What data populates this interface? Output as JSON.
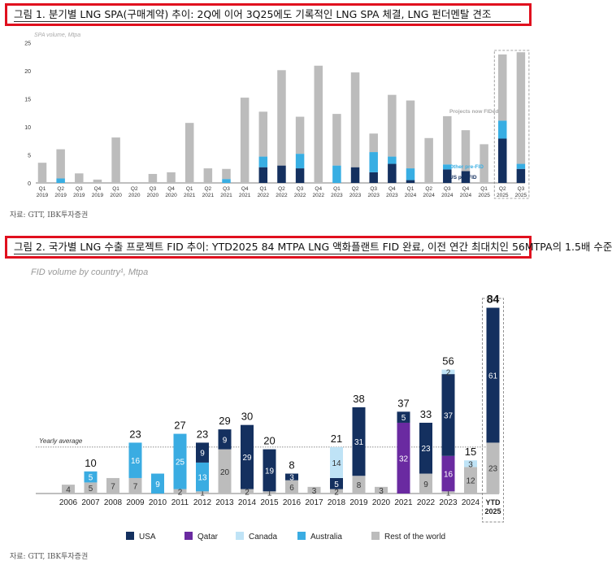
{
  "figure1": {
    "title": "그림 1. 분기별 LNG SPA(구매계약) 추이: 2Q에 이어 3Q25에도 기록적인 LNG SPA 체결, LNG 펀더멘탈 견조",
    "source": "자료: GTT, IBK투자증권"
  },
  "figure2": {
    "title": "그림 2. 국가별 LNG 수출 프로젝트 FID 추이: YTD2025 84 MTPA LNG 액화플랜트 FID 완료, 이전 연간 최대치인 56MTPA의 1.5배 수준",
    "source": "자료: GTT, IBK투자증권"
  },
  "chart_data": [
    {
      "type": "bar",
      "stacked": true,
      "title": "SPA volume, Mtpa",
      "ylim": [
        0,
        25
      ],
      "yticks": [
        "0",
        "5",
        "10",
        "15",
        "20",
        "25"
      ],
      "categories": [
        [
          "Q1",
          "2019"
        ],
        [
          "Q2",
          "2019"
        ],
        [
          "Q3",
          "2019"
        ],
        [
          "Q4",
          "2019"
        ],
        [
          "Q1",
          "2020"
        ],
        [
          "Q2",
          "2020"
        ],
        [
          "Q3",
          "2020"
        ],
        [
          "Q4",
          "2020"
        ],
        [
          "Q1",
          "2021"
        ],
        [
          "Q2",
          "2021"
        ],
        [
          "Q3",
          "2021"
        ],
        [
          "Q4",
          "2021"
        ],
        [
          "Q1",
          "2022"
        ],
        [
          "Q2",
          "2022"
        ],
        [
          "Q3",
          "2022"
        ],
        [
          "Q4",
          "2022"
        ],
        [
          "Q1",
          "2023"
        ],
        [
          "Q2",
          "2023"
        ],
        [
          "Q3",
          "2023"
        ],
        [
          "Q4",
          "2023"
        ],
        [
          "Q1",
          "2024"
        ],
        [
          "Q2",
          "2024"
        ],
        [
          "Q3",
          "2024"
        ],
        [
          "Q4",
          "2024"
        ],
        [
          "Q1",
          "2025"
        ],
        [
          "Q2",
          "2025"
        ],
        [
          "Q3",
          "2025"
        ]
      ],
      "series": [
        {
          "name": "US pre-FID",
          "color": "#14305f",
          "values": [
            0,
            0,
            0,
            0,
            0,
            0,
            0,
            0,
            0,
            0,
            0,
            0,
            2.8,
            3.1,
            2.6,
            0,
            0,
            2.8,
            1.9,
            3.4,
            0.5,
            0,
            2.4,
            2.1,
            0,
            7.9,
            2.5
          ]
        },
        {
          "name": "Other pre-FID",
          "color": "#38aee3",
          "values": [
            0,
            0.8,
            0,
            0,
            0,
            0,
            0,
            0,
            0,
            0,
            0.7,
            0,
            1.9,
            0,
            2.6,
            0,
            3.1,
            0,
            3.6,
            1.3,
            2.1,
            0,
            0.9,
            0,
            0,
            3.2,
            0.9
          ]
        },
        {
          "name": "Projects now FIDed",
          "color": "#bcbcbc",
          "values": [
            3.6,
            5.2,
            1.7,
            0.6,
            8.1,
            0,
            1.6,
            1.9,
            10.7,
            2.6,
            1.8,
            15.2,
            8.0,
            17.0,
            6.6,
            20.9,
            9.2,
            16.9,
            3.3,
            11.0,
            12.1,
            8.0,
            8.6,
            7.3,
            6.9,
            11.8,
            19.9
          ]
        }
      ],
      "legend": [
        "Projects now FIDed",
        "Other pre-FID",
        "US pre-FID"
      ],
      "highlight": "Q2 2025 – Q3 2025 (dashed box)"
    },
    {
      "type": "bar",
      "stacked": true,
      "title": "FID volume by country¹, Mtpa",
      "categories": [
        "2006",
        "2007",
        "2008",
        "2009",
        "2010",
        "2011",
        "2012",
        "2013",
        "2014",
        "2015",
        "2016",
        "2017",
        "2018",
        "2019",
        "2020",
        "2021",
        "2022",
        "2023",
        "2024",
        "YTD 2025"
      ],
      "category_lines": [
        [
          "2006"
        ],
        [
          "2007"
        ],
        [
          "2008"
        ],
        [
          "2009"
        ],
        [
          "2010"
        ],
        [
          "2011"
        ],
        [
          "2012"
        ],
        [
          "2013"
        ],
        [
          "2014"
        ],
        [
          "2015"
        ],
        [
          "2016"
        ],
        [
          "2017"
        ],
        [
          "2018"
        ],
        [
          "2019"
        ],
        [
          "2020"
        ],
        [
          "2021"
        ],
        [
          "2022"
        ],
        [
          "2023"
        ],
        [
          "2024"
        ],
        [
          "YTD",
          "2025"
        ]
      ],
      "totals": [
        "",
        "10",
        "",
        "23",
        "",
        "27",
        "23",
        "29",
        "30",
        "20",
        "8",
        "",
        "21",
        "38",
        "",
        "37",
        "33",
        "56",
        "15",
        "84"
      ],
      "series": [
        {
          "name": "Rest of the world",
          "color": "#bcbcbc",
          "values": [
            4,
            5,
            7,
            7,
            0,
            2,
            1,
            20,
            2,
            1,
            6,
            3,
            2,
            8,
            3,
            0,
            9,
            1,
            12,
            23
          ],
          "labels": [
            "4",
            "5",
            "7",
            "7",
            "",
            "2",
            "1",
            "20",
            "2",
            "1",
            "6",
            "3",
            "2",
            "8",
            "3",
            "",
            "9",
            "1",
            "12",
            "23"
          ]
        },
        {
          "name": "Australia",
          "color": "#3aace2",
          "values": [
            0,
            5,
            0,
            16,
            9,
            25,
            13,
            0,
            0,
            0,
            0,
            0,
            0,
            0,
            0,
            0,
            0,
            0,
            0,
            0
          ],
          "labels": [
            "",
            "5",
            "",
            "16",
            "9",
            "25",
            "13",
            "",
            "",
            "",
            "",
            "",
            "",
            "",
            "",
            "",
            "",
            "",
            "",
            ""
          ]
        },
        {
          "name": "Canada",
          "color": "#bfe3f6",
          "values": [
            0,
            0,
            0,
            0,
            0,
            0,
            0,
            0,
            0,
            0,
            0,
            0,
            14,
            0,
            0,
            0,
            0,
            2,
            3,
            0
          ],
          "labels": [
            "",
            "",
            "",
            "",
            "",
            "",
            "",
            "",
            "",
            "",
            "",
            "",
            "14",
            "",
            "",
            "",
            "",
            "2",
            "3",
            ""
          ]
        },
        {
          "name": "USA",
          "color": "#14305f",
          "values": [
            0,
            0,
            0,
            0,
            0,
            0,
            9,
            9,
            29,
            19,
            3,
            0,
            5,
            31,
            0,
            5,
            23,
            37,
            0,
            61
          ],
          "labels": [
            "",
            "",
            "",
            "",
            "",
            "",
            "9",
            "9",
            "29",
            "19",
            "3",
            "",
            "5",
            "31",
            "",
            "5",
            "23",
            "37",
            "",
            "61"
          ]
        },
        {
          "name": "Qatar",
          "color": "#6a2aa1",
          "values": [
            0,
            0,
            0,
            0,
            0,
            0,
            0,
            0,
            0,
            0,
            0,
            0,
            0,
            0,
            0,
            32,
            0,
            16,
            0,
            0
          ],
          "labels": [
            "",
            "",
            "",
            "",
            "",
            "",
            "",
            "",
            "",
            "",
            "",
            "",
            "",
            "",
            "",
            "32",
            "",
            "16",
            "",
            ""
          ]
        }
      ],
      "stack_order": [
        "Rest of the world",
        "Qatar",
        "Australia",
        "USA",
        "Canada"
      ],
      "legend": [
        "USA",
        "Qatar",
        "Canada",
        "Australia",
        "Rest of the world"
      ],
      "reference_line": {
        "label": "Yearly average",
        "value": 21
      },
      "highlight": "YTD 2025 (dashed box)"
    }
  ]
}
